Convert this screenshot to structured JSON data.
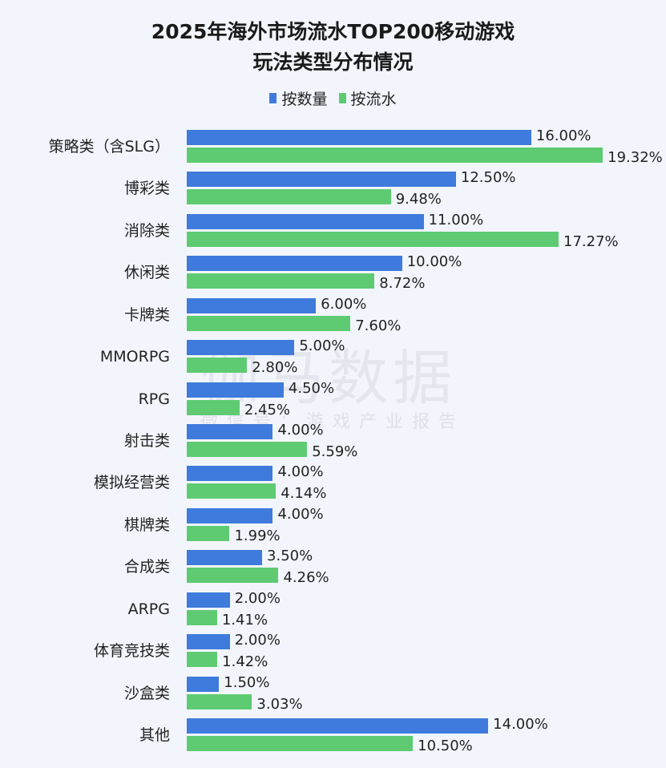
{
  "chart_data": {
    "type": "bar",
    "orientation": "horizontal",
    "title": "2025年海外市场流水TOP200移动游戏",
    "subtitle": "玩法类型分布情况",
    "xlabel": "",
    "ylabel": "",
    "legend_position": "top",
    "grid": false,
    "xlim": [
      0,
      20
    ],
    "categories": [
      "策略类（含SLG）",
      "博彩类",
      "消除类",
      "休闲类",
      "卡牌类",
      "MMORPG",
      "RPG",
      "射击类",
      "模拟经营类",
      "棋牌类",
      "合成类",
      "ARPG",
      "体育竞技类",
      "沙盒类",
      "其他"
    ],
    "series": [
      {
        "name": "按数量",
        "color": "#3f7bdc",
        "values": [
          16.0,
          12.5,
          11.0,
          10.0,
          6.0,
          5.0,
          4.5,
          4.0,
          4.0,
          4.0,
          3.5,
          2.0,
          2.0,
          1.5,
          14.0
        ],
        "labels": [
          "16.00%",
          "12.50%",
          "11.00%",
          "10.00%",
          "6.00%",
          "5.00%",
          "4.50%",
          "4.00%",
          "4.00%",
          "4.00%",
          "3.50%",
          "2.00%",
          "2.00%",
          "1.50%",
          "14.00%"
        ]
      },
      {
        "name": "按流水",
        "color": "#5ecb72",
        "values": [
          19.32,
          9.48,
          17.27,
          8.72,
          7.6,
          2.8,
          2.45,
          5.59,
          4.14,
          1.99,
          4.26,
          1.41,
          1.42,
          3.03,
          10.5
        ],
        "labels": [
          "19.32%",
          "9.48%",
          "17.27%",
          "8.72%",
          "7.60%",
          "2.80%",
          "2.45%",
          "5.59%",
          "4.14%",
          "1.99%",
          "4.26%",
          "1.41%",
          "1.42%",
          "3.03%",
          "10.50%"
        ]
      }
    ]
  },
  "watermark": {
    "logo": "伽马数据",
    "line": "微信号：游戏产业报告"
  }
}
